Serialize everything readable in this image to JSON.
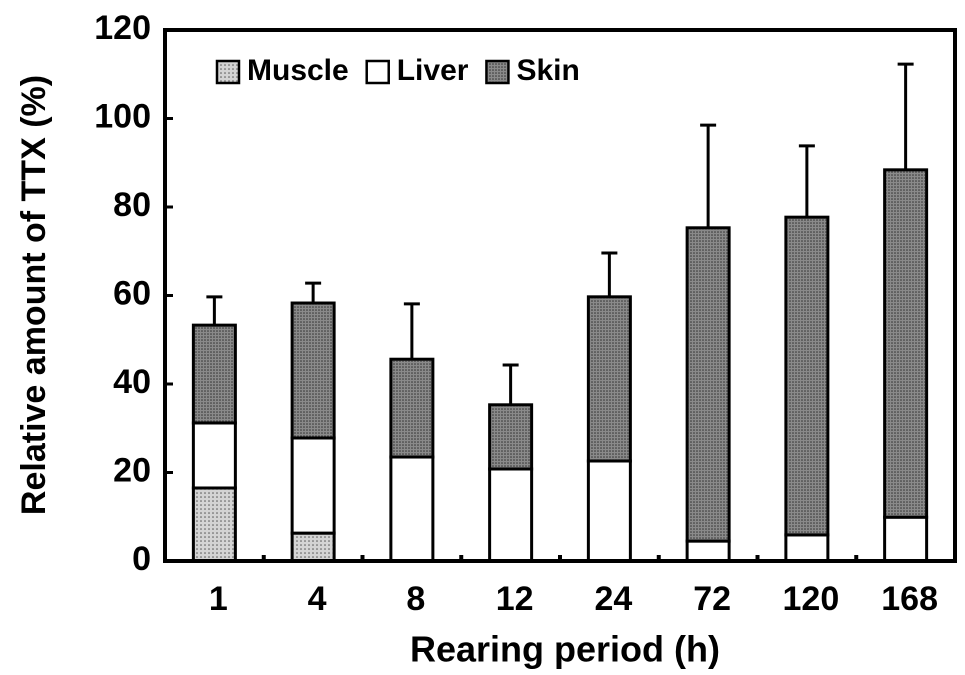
{
  "chart_data": {
    "type": "stacked_bar",
    "xlabel": "Rearing period (h)",
    "ylabel": "Relative amount of TTX (%)",
    "categories": [
      "1",
      "4",
      "8",
      "12",
      "24",
      "72",
      "120",
      "168"
    ],
    "series": [
      {
        "name": "Muscle",
        "color": "#d4d4d4",
        "values": [
          16.5,
          6.3,
          0,
          0,
          0,
          0,
          0,
          0
        ]
      },
      {
        "name": "Liver",
        "color": "#ffffff",
        "values": [
          14.7,
          21.5,
          23.5,
          20.8,
          22.6,
          4.5,
          5.9,
          9.9
        ]
      },
      {
        "name": "Skin",
        "color": "#8a8a8a",
        "values": [
          22.1,
          30.5,
          22.1,
          14.5,
          37.1,
          70.8,
          71.8,
          78.5
        ]
      }
    ],
    "errors": [
      6.4,
      4.5,
      12.5,
      9.0,
      9.9,
      23.2,
      16.1,
      23.9
    ],
    "ylim": [
      0,
      120
    ],
    "yticks": [
      0,
      20,
      40,
      60,
      80,
      100,
      120
    ],
    "legend": "top-left"
  }
}
